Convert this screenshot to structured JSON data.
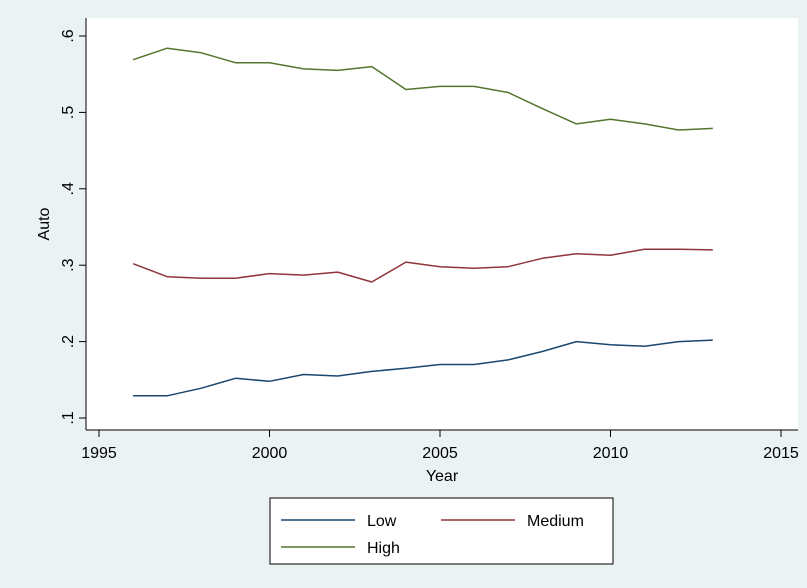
{
  "chart_data": {
    "type": "line",
    "title": "",
    "xlabel": "Year",
    "ylabel": "Auto",
    "xlim": [
      1995,
      2015
    ],
    "ylim": [
      0.1,
      0.6
    ],
    "xticks": [
      1995,
      2000,
      2005,
      2010,
      2015
    ],
    "xtick_labels": [
      "1995",
      "2000",
      "2005",
      "2010",
      "2015"
    ],
    "yticks": [
      0.1,
      0.2,
      0.3,
      0.4,
      0.5,
      0.6
    ],
    "ytick_labels": [
      ".1",
      ".2",
      ".3",
      ".4",
      ".5",
      ".6"
    ],
    "grid": false,
    "legend_position": "bottom",
    "x": [
      1996,
      1997,
      1998,
      1999,
      2000,
      2001,
      2002,
      2003,
      2004,
      2005,
      2006,
      2007,
      2008,
      2009,
      2010,
      2011,
      2012,
      2013
    ],
    "series": [
      {
        "name": "Low",
        "color": "#1a476f",
        "values": [
          0.129,
          0.129,
          0.139,
          0.152,
          0.148,
          0.157,
          0.155,
          0.161,
          0.165,
          0.17,
          0.17,
          0.176,
          0.187,
          0.2,
          0.196,
          0.194,
          0.2,
          0.202
        ]
      },
      {
        "name": "Medium",
        "color": "#90353b",
        "values": [
          0.302,
          0.285,
          0.283,
          0.283,
          0.289,
          0.287,
          0.291,
          0.278,
          0.304,
          0.298,
          0.296,
          0.298,
          0.309,
          0.315,
          0.313,
          0.321,
          0.321,
          0.32
        ]
      },
      {
        "name": "High",
        "color": "#55752f",
        "values": [
          0.569,
          0.584,
          0.578,
          0.565,
          0.565,
          0.557,
          0.555,
          0.56,
          0.53,
          0.534,
          0.534,
          0.526,
          0.505,
          0.485,
          0.491,
          0.485,
          0.477,
          0.479
        ]
      }
    ]
  }
}
